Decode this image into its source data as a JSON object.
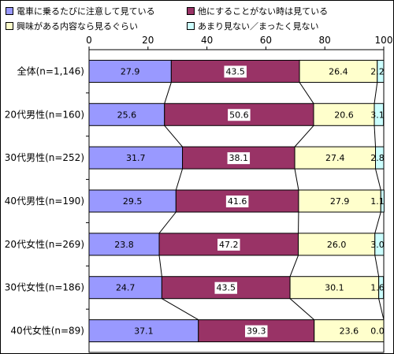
{
  "legend": [
    {
      "label": "電車に乗るたびに注意して見ている",
      "color": "#9999ff"
    },
    {
      "label": "他にすることがない時は見ている",
      "color": "#993366"
    },
    {
      "label": "興味がある内容なら見るぐらい",
      "color": "#ffffcc"
    },
    {
      "label": "あまり見ない／まったく見ない",
      "color": "#ccffff"
    }
  ],
  "chart_data": {
    "type": "bar",
    "orientation": "horizontal",
    "stacked": true,
    "categories": [
      "全体(n=1,146)",
      "20代男性(n=160)",
      "30代男性(n=252)",
      "40代男性(n=190)",
      "20代女性(n=269)",
      "30代女性(n=186)",
      "40代女性(n=89)"
    ],
    "series": [
      {
        "name": "電車に乗るたびに注意して見ている",
        "color": "#9999ff",
        "values": [
          27.9,
          25.6,
          31.7,
          29.5,
          23.8,
          24.7,
          37.1
        ]
      },
      {
        "name": "他にすることがない時は見ている",
        "color": "#993366",
        "values": [
          43.5,
          50.6,
          38.1,
          41.6,
          47.2,
          43.5,
          39.3
        ]
      },
      {
        "name": "興味がある内容なら見るぐらい",
        "color": "#ffffcc",
        "values": [
          26.4,
          20.6,
          27.4,
          27.9,
          26.0,
          30.1,
          23.6
        ]
      },
      {
        "name": "あまり見ない／まったく見ない",
        "color": "#ccffff",
        "values": [
          2.2,
          3.1,
          2.8,
          1.1,
          3.0,
          1.6,
          0.0
        ]
      }
    ],
    "value_labels": [
      [
        "27.9",
        "43.5",
        "26.4",
        "2.2"
      ],
      [
        "25.6",
        "50.6",
        "20.6",
        "3.1"
      ],
      [
        "31.7",
        "38.1",
        "27.4",
        "2.8"
      ],
      [
        "29.5",
        "41.6",
        "27.9",
        "1.1"
      ],
      [
        "23.8",
        "47.2",
        "26.0",
        "3.0"
      ],
      [
        "24.7",
        "43.5",
        "30.1",
        "1.6"
      ],
      [
        "37.1",
        "39.3",
        "23.6",
        "0.0"
      ]
    ],
    "xlim": [
      0,
      100
    ],
    "xticks": [
      0,
      20,
      40,
      60,
      80,
      100
    ],
    "connector_lines": true,
    "legend_position": "top"
  }
}
